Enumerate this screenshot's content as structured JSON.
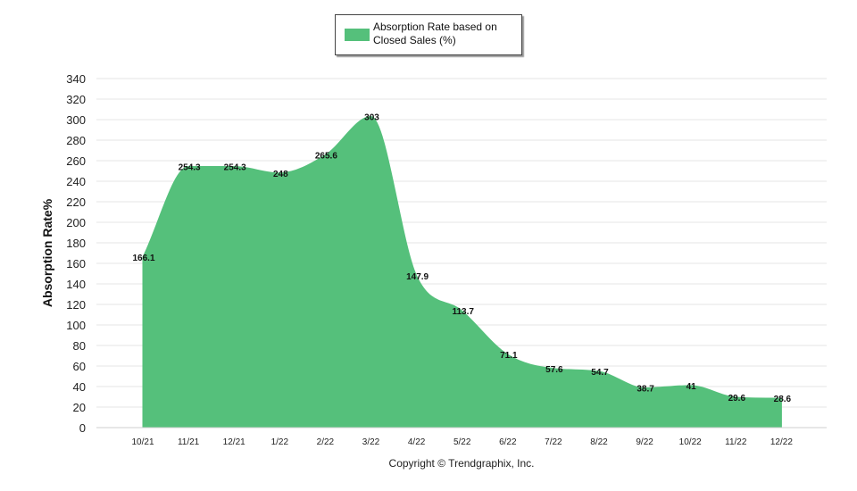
{
  "chart_data": {
    "type": "area",
    "title": "",
    "legend": {
      "label": "Absorption Rate based on Closed Sales (%)",
      "position": "top"
    },
    "xlabel": "",
    "ylabel": "Absorption Rate%",
    "ylim": [
      0,
      340
    ],
    "ytick_step": 20,
    "grid": true,
    "categories": [
      "10/21",
      "11/21",
      "12/21",
      "1/22",
      "2/22",
      "3/22",
      "4/22",
      "5/22",
      "6/22",
      "7/22",
      "8/22",
      "9/22",
      "10/22",
      "11/22",
      "12/22"
    ],
    "series": [
      {
        "name": "Absorption Rate based on Closed Sales (%)",
        "values": [
          166.1,
          254.3,
          254.3,
          248,
          265.6,
          303,
          147.9,
          113.7,
          71.1,
          57.6,
          54.7,
          38.7,
          41,
          29.6,
          28.6
        ]
      }
    ],
    "data_labels": [
      "166.1",
      "254.3",
      "254.3",
      "248",
      "265.6",
      "303",
      "147.9",
      "113.7",
      "71.1",
      "57.6",
      "54.7",
      "38.7",
      "41",
      "29.6",
      "28.6"
    ],
    "color": "#55c07b"
  },
  "footer": {
    "copyright": "Copyright © Trendgraphix, Inc."
  }
}
